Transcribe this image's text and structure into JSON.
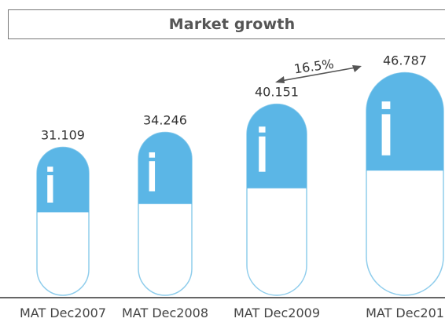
{
  "chart_data": {
    "type": "bar",
    "title": "Market growth",
    "categories": [
      "MAT Dec2007",
      "MAT Dec2008",
      "MAT Dec2009",
      "MAT Dec201"
    ],
    "values": [
      31.109,
      34.246,
      40.151,
      46.787
    ],
    "value_labels": [
      "31.109",
      "34.246",
      "40.151",
      "46.787"
    ],
    "annotation": "16.5%",
    "xlabel": "",
    "ylabel": "",
    "grid": false,
    "colors": {
      "capsule_top": "#5bb6e6",
      "capsule_bottom": "#ffffff",
      "capsule_outline": "#8fcdec",
      "highlight": "#ffffff",
      "axis": "#333333",
      "arrow": "#555555"
    }
  }
}
